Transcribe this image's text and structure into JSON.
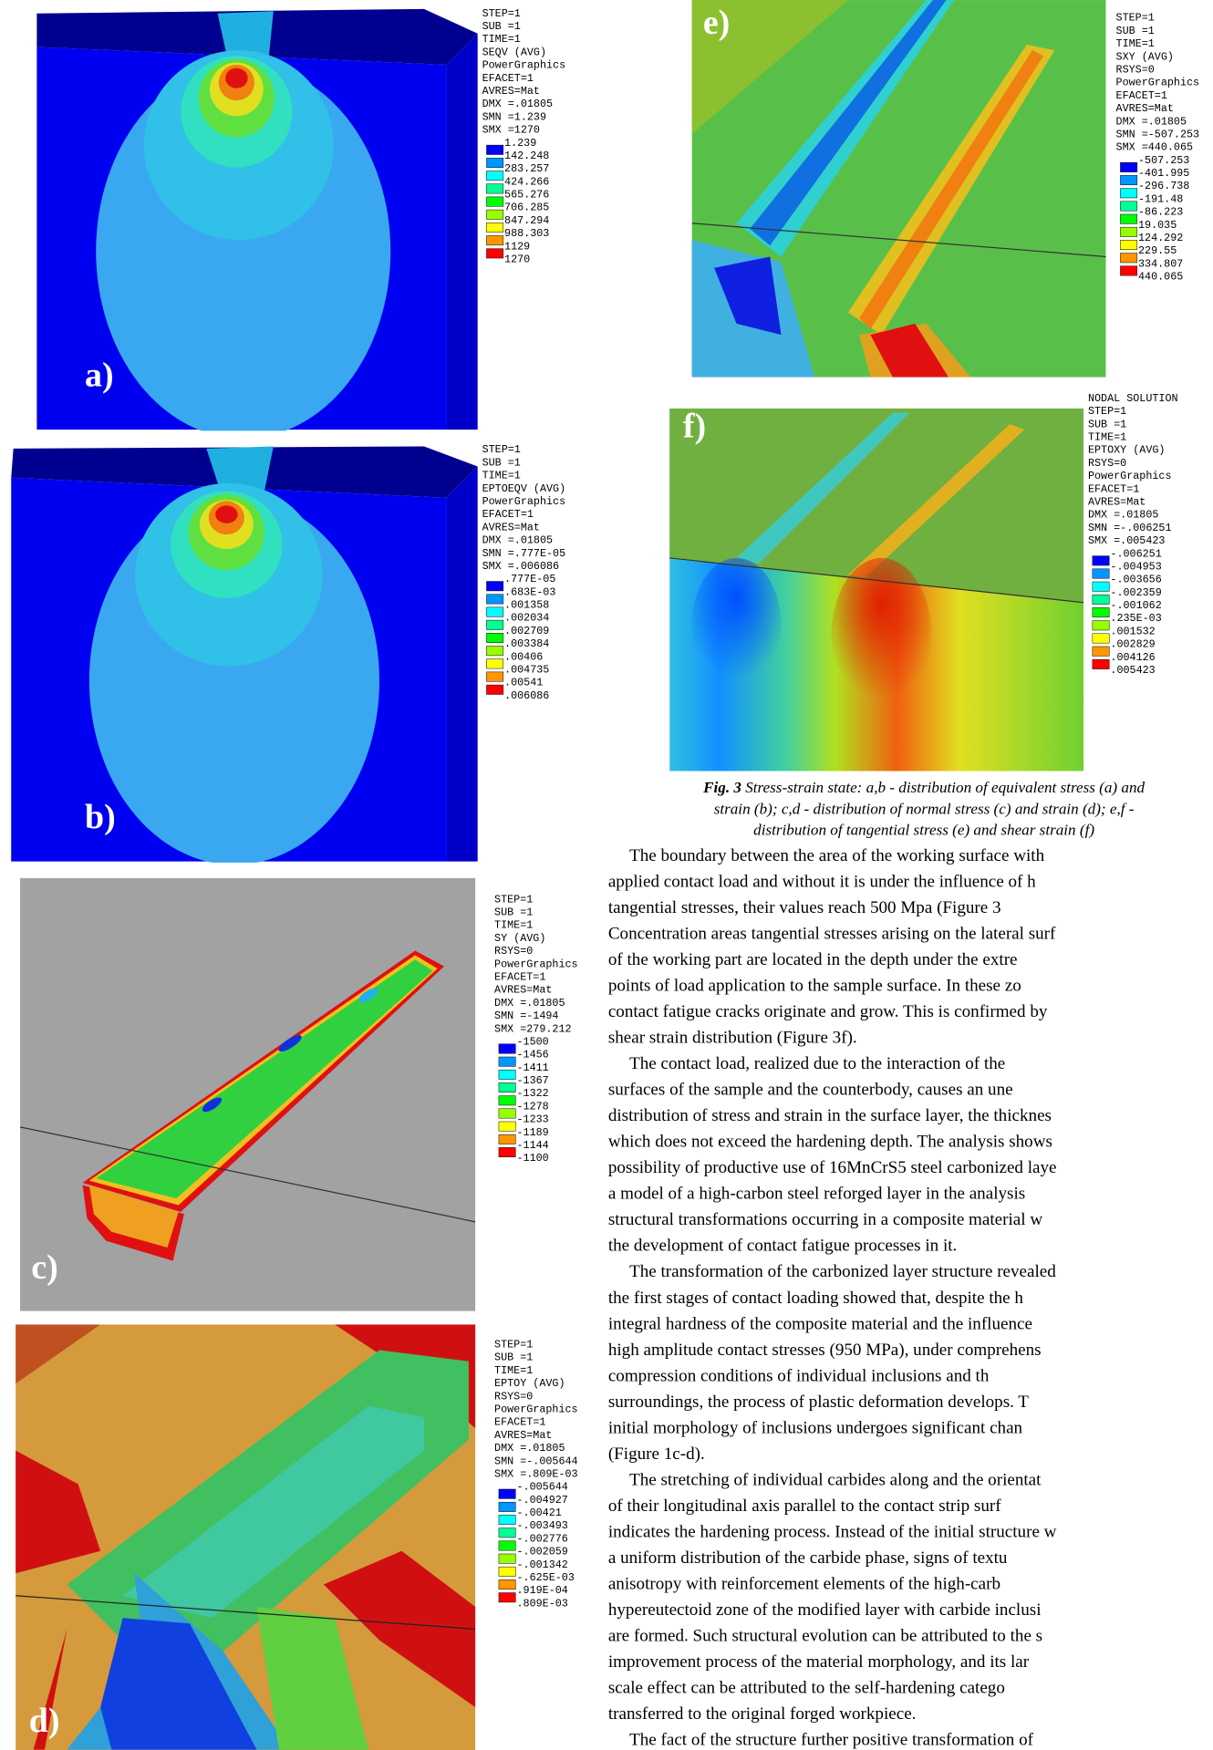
{
  "panels": [
    {
      "label": "a)",
      "info": [
        "STEP=1",
        "SUB =1",
        "TIME=1",
        "SEQV     (AVG)",
        "PowerGraphics",
        "EFACET=1",
        "AVRES=Mat",
        "DMX =.01805",
        "SMN =1.239",
        "SMX =1270"
      ],
      "levels": [
        "1.239",
        "142.248",
        "283.257",
        "424.266",
        "565.276",
        "706.285",
        "847.294",
        "988.303",
        "1129",
        "1270"
      ]
    },
    {
      "label": "b)",
      "info": [
        "STEP=1",
        "SUB =1",
        "TIME=1",
        "EPTOEQV  (AVG)",
        "PowerGraphics",
        "EFACET=1",
        "AVRES=Mat",
        "DMX =.01805",
        "SMN =.777E-05",
        "SMX =.006086"
      ],
      "levels": [
        ".777E-05",
        ".683E-03",
        ".001358",
        ".002034",
        ".002709",
        ".003384",
        ".00406",
        ".004735",
        ".00541",
        ".006086"
      ]
    },
    {
      "label": "c)",
      "info": [
        "STEP=1",
        "SUB =1",
        "TIME=1",
        "SY       (AVG)",
        "RSYS=0",
        "PowerGraphics",
        "EFACET=1",
        "AVRES=Mat",
        "DMX =.01805",
        "SMN =-1494",
        "SMX =279.212"
      ],
      "levels": [
        "-1500",
        "-1456",
        "-1411",
        "-1367",
        "-1322",
        "-1278",
        "-1233",
        "-1189",
        "-1144",
        "-1100"
      ]
    },
    {
      "label": "d)",
      "info": [
        "STEP=1",
        "SUB =1",
        "TIME=1",
        "EPTOY    (AVG)",
        "RSYS=0",
        "PowerGraphics",
        "EFACET=1",
        "AVRES=Mat",
        "DMX =.01805",
        "SMN =-.005644",
        "SMX =.809E-03"
      ],
      "levels": [
        "-.005644",
        "-.004927",
        "-.00421",
        "-.003493",
        "-.002776",
        "-.002059",
        "-.001342",
        "-.625E-03",
        ".919E-04",
        ".809E-03"
      ]
    },
    {
      "label": "e)",
      "info": [
        "STEP=1",
        "SUB =1",
        "TIME=1",
        "SXY      (AVG)",
        "RSYS=0",
        "PowerGraphics",
        "EFACET=1",
        "AVRES=Mat",
        "DMX =.01805",
        "SMN =-507.253",
        "SMX =440.065"
      ],
      "levels": [
        "-507.253",
        "-401.995",
        "-296.738",
        "-191.48",
        "-86.223",
        "19.035",
        "124.292",
        "229.55",
        "334.807",
        "440.065"
      ]
    },
    {
      "label": "f)",
      "info": [
        "NODAL SOLUTION",
        "STEP=1",
        "SUB =1",
        "TIME=1",
        "EPTOXY   (AVG)",
        "RSYS=0",
        "PowerGraphics",
        "EFACET=1",
        "AVRES=Mat",
        "DMX =.01805",
        "SMN =-.006251",
        "SMX =.005423"
      ],
      "levels": [
        "-.006251",
        "-.004953",
        "-.003656",
        "-.002359",
        "-.001062",
        ".235E-03",
        ".001532",
        ".002829",
        ".004126",
        ".005423"
      ]
    }
  ],
  "legend_colors": [
    "#0000ff",
    "#0096ff",
    "#00ffff",
    "#00ff96",
    "#00ff00",
    "#96ff00",
    "#ffff00",
    "#ff9600",
    "#ff0000"
  ],
  "caption": {
    "label": "Fig. 3",
    "lines": [
      " Stress-strain state: a,b - distribution of equivalent stress (a) and",
      "strain (b); c,d - distribution of normal stress (c) and strain (d); e,f -",
      "distribution of tangential stress (e) and shear strain (f)"
    ]
  },
  "body": {
    "paragraphs": [
      [
        "The boundary between the area of the working surface with",
        "applied contact load and without it is under the influence of h",
        "tangential stresses, their values reach 500 Mpa (Figure 3",
        "Concentration areas tangential stresses arising on the lateral surf",
        "of the working part are located in the depth under the extre",
        "points of load application to the sample surface. In these zo",
        "contact fatigue cracks originate and grow. This is confirmed by",
        "shear strain distribution (Figure 3f)."
      ],
      [
        "The contact load, realized due to the interaction of the",
        "surfaces of the sample and the counterbody, causes an une",
        "distribution of stress and strain in the surface layer, the thicknes",
        "which does not exceed the hardening depth. The analysis shows",
        "possibility of productive use of 16MnCrS5 steel carbonized laye",
        "a model of a high-carbon steel reforged layer in the analysis",
        "structural transformations occurring in a composite material w",
        "the development of contact fatigue processes in it."
      ],
      [
        "The transformation of the carbonized layer structure revealed",
        "the first stages of contact loading showed that, despite the h",
        "integral hardness of the composite material and the influence",
        "high amplitude contact stresses (950 MPa), under comprehens",
        "compression conditions of individual inclusions and th",
        "surroundings, the process of plastic deformation develops. T",
        "initial morphology of inclusions undergoes significant chan",
        "(Figure 1c-d)."
      ],
      [
        "The stretching of individual carbides along and the orientat",
        "of their longitudinal axis parallel to the contact strip surf",
        "indicates the hardening process. Instead of the initial structure w",
        "a uniform distribution of the carbide phase, signs of textu",
        "anisotropy with reinforcement elements of the high-carb",
        "hypereutectoid zone of the modified layer with carbide inclusi",
        "are formed. Such structural evolution can be attributed to the s",
        "improvement process of the material morphology, and its lar",
        "scale effect can be attributed to the self-hardening catego",
        "transferred to the original forged workpiece."
      ],
      [
        "The fact of the structure further positive transformation of"
      ]
    ]
  }
}
